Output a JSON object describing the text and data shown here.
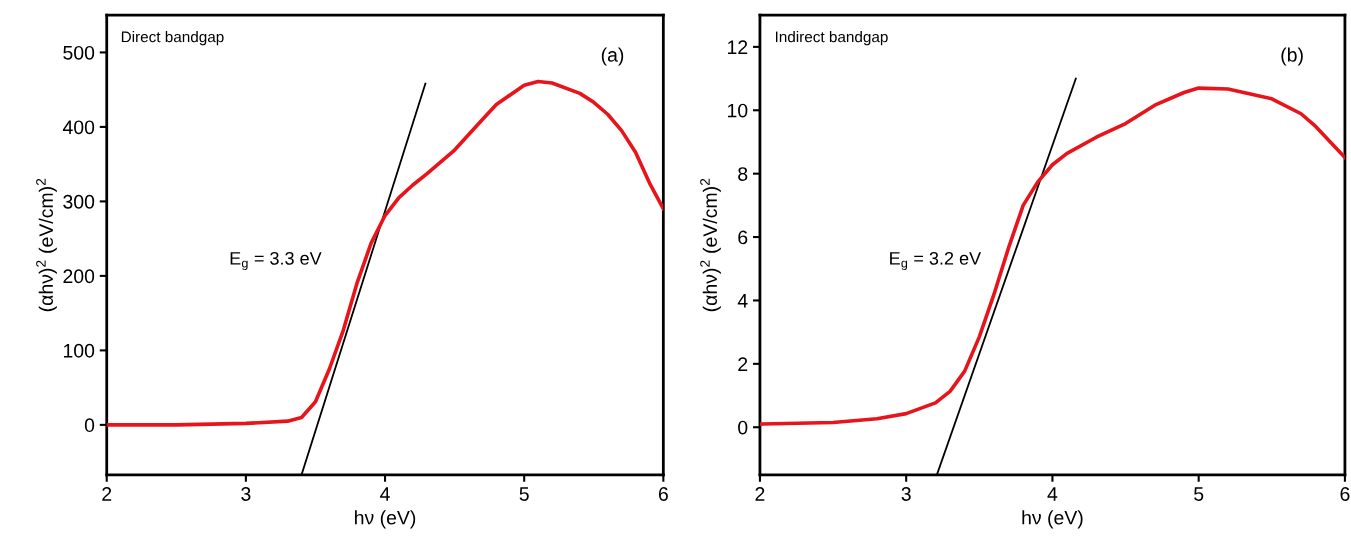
{
  "chart_data": [
    {
      "type": "line",
      "xlabel": "hν (eV)",
      "ylabel": "(αhν)$^{2}$ (eV/cm)$^{2}$",
      "xlim": [
        2,
        6
      ],
      "ylim": [
        -67,
        550
      ],
      "xticks": [
        2,
        3,
        4,
        5,
        6
      ],
      "yticks": [
        0,
        100,
        200,
        300,
        400,
        500
      ],
      "grid": false,
      "legend": false,
      "marker": "none",
      "annotations": [
        "Direct bandgap",
        "(a)",
        "E$_{g}$ = 3.3 eV"
      ],
      "series": [
        {
          "color": "#e8141c",
          "x": [
            2,
            2.5,
            3,
            3.3,
            3.4,
            3.5,
            3.6,
            3.7,
            3.8,
            3.9,
            4.0,
            4.1,
            4.2,
            4.3,
            4.5,
            4.7,
            4.8,
            5.0,
            5.1,
            5.2,
            5.4,
            5.5,
            5.6,
            5.7,
            5.8,
            5.9,
            6.0
          ],
          "values": [
            0,
            0,
            2,
            5,
            10,
            31,
            75,
            127,
            191,
            244,
            281,
            305,
            322,
            337,
            369,
            410,
            430,
            456,
            461,
            459,
            445,
            433,
            417,
            395,
            366,
            325,
            290
          ]
        },
        {
          "type": "line",
          "color": "#000000",
          "x": [
            3.4,
            4.29
          ],
          "values": [
            -67,
            458
          ]
        }
      ]
    },
    {
      "type": "line",
      "xlabel": "hν (eV)",
      "ylabel": "(αhν)$^{2}$ (eV/cm)$^{2}$",
      "xlim": [
        2,
        6
      ],
      "ylim": [
        -1.5,
        13
      ],
      "xticks": [
        2,
        3,
        4,
        5,
        6
      ],
      "yticks": [
        0,
        2,
        4,
        6,
        8,
        10,
        12
      ],
      "grid": false,
      "legend": false,
      "marker": "none",
      "annotations": [
        "Indirect bandgap",
        "(b)",
        "E$_{g}$ = 3.2 eV"
      ],
      "series": [
        {
          "color": "#e8141c",
          "x": [
            2,
            2.5,
            2.8,
            3.0,
            3.2,
            3.3,
            3.4,
            3.5,
            3.6,
            3.7,
            3.8,
            3.9,
            4.0,
            4.1,
            4.3,
            4.5,
            4.7,
            4.9,
            5.0,
            5.2,
            5.5,
            5.7,
            5.8,
            6.0
          ],
          "values": [
            0.1,
            0.15,
            0.27,
            0.43,
            0.77,
            1.13,
            1.77,
            2.85,
            4.19,
            5.66,
            7.0,
            7.74,
            8.28,
            8.64,
            9.15,
            9.58,
            10.16,
            10.56,
            10.7,
            10.67,
            10.36,
            9.89,
            9.49,
            8.51
          ]
        },
        {
          "type": "line",
          "color": "#000000",
          "x": [
            3.21,
            4.16
          ],
          "values": [
            -1.5,
            11
          ]
        }
      ]
    }
  ]
}
